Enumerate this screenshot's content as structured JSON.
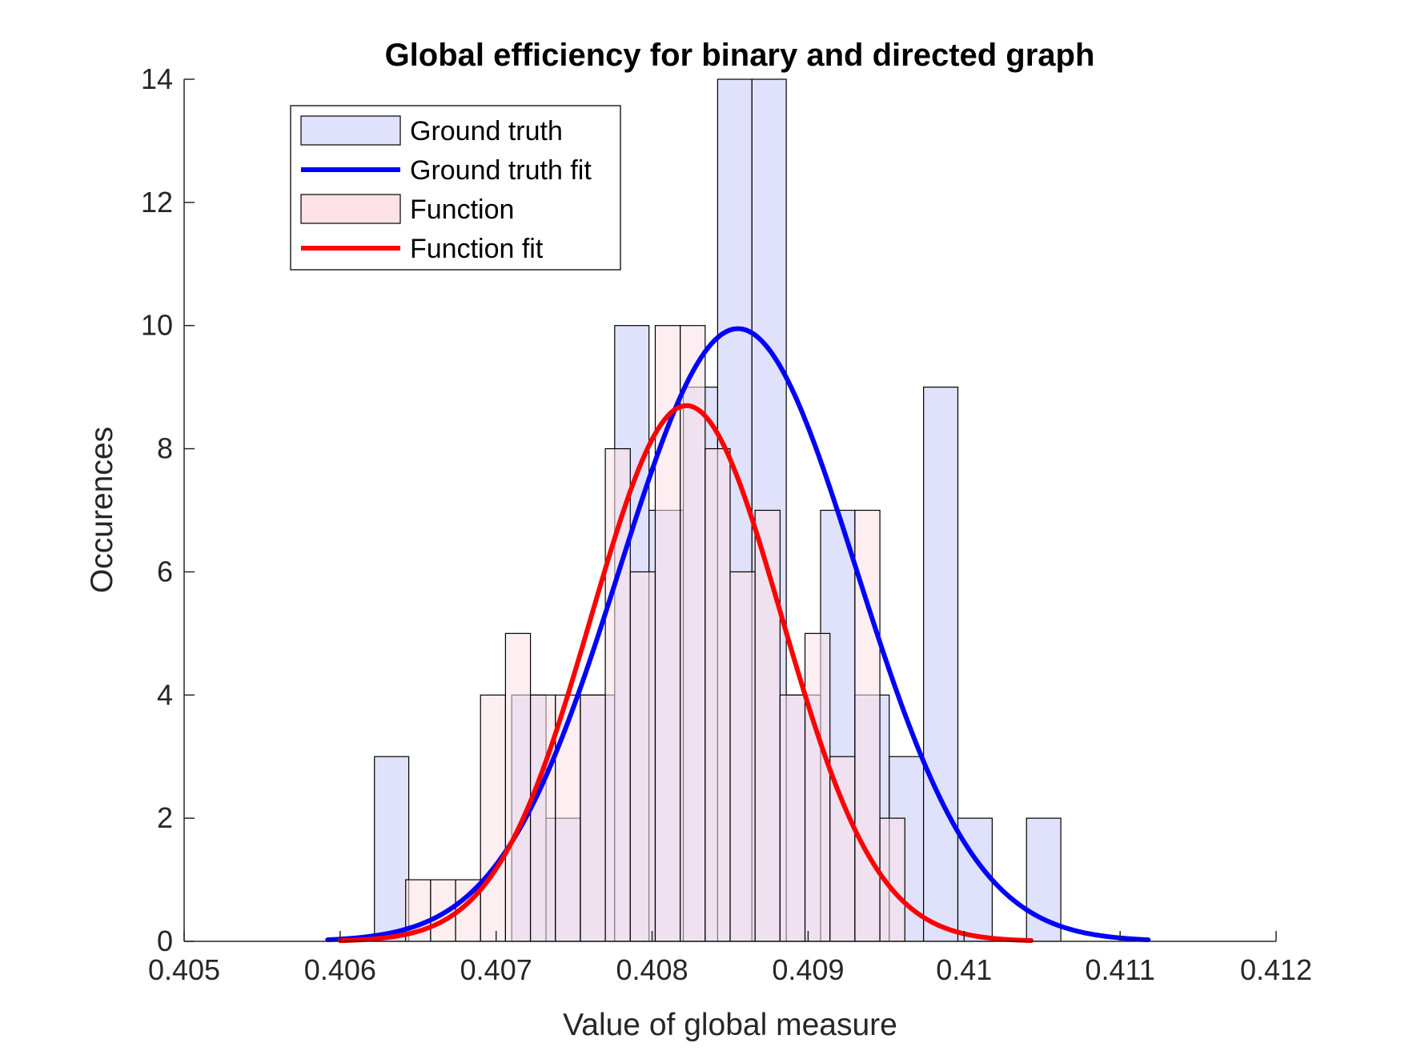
{
  "chart_data": {
    "type": "bar",
    "title": "Global efficiency for binary and directed graph",
    "xlabel": "Value of global measure",
    "ylabel": "Occurences",
    "xlim": [
      0.405,
      0.412
    ],
    "ylim": [
      0,
      14
    ],
    "xticks": [
      {
        "value": 0.405,
        "label": "0.405"
      },
      {
        "value": 0.406,
        "label": "0.406"
      },
      {
        "value": 0.407,
        "label": "0.407"
      },
      {
        "value": 0.408,
        "label": "0.408"
      },
      {
        "value": 0.409,
        "label": "0.409"
      },
      {
        "value": 0.41,
        "label": "0.41"
      },
      {
        "value": 0.411,
        "label": "0.411"
      },
      {
        "value": 0.412,
        "label": "0.412"
      }
    ],
    "yticks": [
      {
        "value": 0,
        "label": "0"
      },
      {
        "value": 2,
        "label": "2"
      },
      {
        "value": 4,
        "label": "4"
      },
      {
        "value": 6,
        "label": "6"
      },
      {
        "value": 8,
        "label": "8"
      },
      {
        "value": 10,
        "label": "10"
      },
      {
        "value": 12,
        "label": "12"
      },
      {
        "value": 14,
        "label": "14"
      }
    ],
    "grid": false,
    "legend_position": "top-left",
    "legend": [
      {
        "label": "Ground truth",
        "kind": "patch",
        "series": "ground_truth"
      },
      {
        "label": "Ground truth fit",
        "kind": "line",
        "series": "ground_truth_fit"
      },
      {
        "label": "Function",
        "kind": "patch",
        "series": "function"
      },
      {
        "label": "Function fit",
        "kind": "line",
        "series": "function_fit"
      }
    ],
    "series": [
      {
        "key": "ground_truth",
        "kind": "histogram",
        "color": "#E0E1FA",
        "bins": [
          {
            "x0": 0.40622,
            "x1": 0.40644,
            "count": 3
          },
          {
            "x0": 0.4071,
            "x1": 0.40732,
            "count": 4
          },
          {
            "x0": 0.40732,
            "x1": 0.40754,
            "count": 2
          },
          {
            "x0": 0.40754,
            "x1": 0.40776,
            "count": 4
          },
          {
            "x0": 0.40776,
            "x1": 0.40798,
            "count": 10
          },
          {
            "x0": 0.40798,
            "x1": 0.4082,
            "count": 7
          },
          {
            "x0": 0.4082,
            "x1": 0.40842,
            "count": 9
          },
          {
            "x0": 0.40842,
            "x1": 0.40864,
            "count": 14
          },
          {
            "x0": 0.40864,
            "x1": 0.40886,
            "count": 14
          },
          {
            "x0": 0.40886,
            "x1": 0.40908,
            "count": 4
          },
          {
            "x0": 0.40908,
            "x1": 0.4093,
            "count": 7
          },
          {
            "x0": 0.4093,
            "x1": 0.40952,
            "count": 4
          },
          {
            "x0": 0.40952,
            "x1": 0.40974,
            "count": 3
          },
          {
            "x0": 0.40974,
            "x1": 0.40996,
            "count": 9
          },
          {
            "x0": 0.40996,
            "x1": 0.41018,
            "count": 2
          },
          {
            "x0": 0.4104,
            "x1": 0.41062,
            "count": 2
          }
        ]
      },
      {
        "key": "function",
        "kind": "histogram",
        "color": "#FCE1E6",
        "bins": [
          {
            "x0": 0.40642,
            "x1": 0.40658,
            "count": 1
          },
          {
            "x0": 0.40658,
            "x1": 0.40674,
            "count": 1
          },
          {
            "x0": 0.40674,
            "x1": 0.4069,
            "count": 1
          },
          {
            "x0": 0.4069,
            "x1": 0.40706,
            "count": 4
          },
          {
            "x0": 0.40706,
            "x1": 0.40722,
            "count": 5
          },
          {
            "x0": 0.40722,
            "x1": 0.40738,
            "count": 4
          },
          {
            "x0": 0.40738,
            "x1": 0.40754,
            "count": 4
          },
          {
            "x0": 0.40754,
            "x1": 0.4077,
            "count": 4
          },
          {
            "x0": 0.4077,
            "x1": 0.40786,
            "count": 8
          },
          {
            "x0": 0.40786,
            "x1": 0.40802,
            "count": 6
          },
          {
            "x0": 0.40802,
            "x1": 0.40818,
            "count": 10
          },
          {
            "x0": 0.40818,
            "x1": 0.40834,
            "count": 10
          },
          {
            "x0": 0.40834,
            "x1": 0.4085,
            "count": 8
          },
          {
            "x0": 0.4085,
            "x1": 0.40866,
            "count": 6
          },
          {
            "x0": 0.40866,
            "x1": 0.40882,
            "count": 7
          },
          {
            "x0": 0.40882,
            "x1": 0.40898,
            "count": 4
          },
          {
            "x0": 0.40898,
            "x1": 0.40914,
            "count": 5
          },
          {
            "x0": 0.40914,
            "x1": 0.4093,
            "count": 3
          },
          {
            "x0": 0.4093,
            "x1": 0.40946,
            "count": 7
          },
          {
            "x0": 0.40946,
            "x1": 0.40962,
            "count": 2
          }
        ]
      },
      {
        "key": "ground_truth_fit",
        "kind": "line",
        "color": "#0000FF",
        "distribution": "normal",
        "mean": 0.40855,
        "sigma": 0.00076,
        "peak": 9.95,
        "x_range": [
          0.40592,
          0.41118
        ]
      },
      {
        "key": "function_fit",
        "kind": "line",
        "color": "#FF0000",
        "distribution": "normal",
        "mean": 0.40822,
        "sigma": 0.00061,
        "peak": 8.7,
        "x_range": [
          0.406,
          0.41043
        ]
      }
    ]
  }
}
